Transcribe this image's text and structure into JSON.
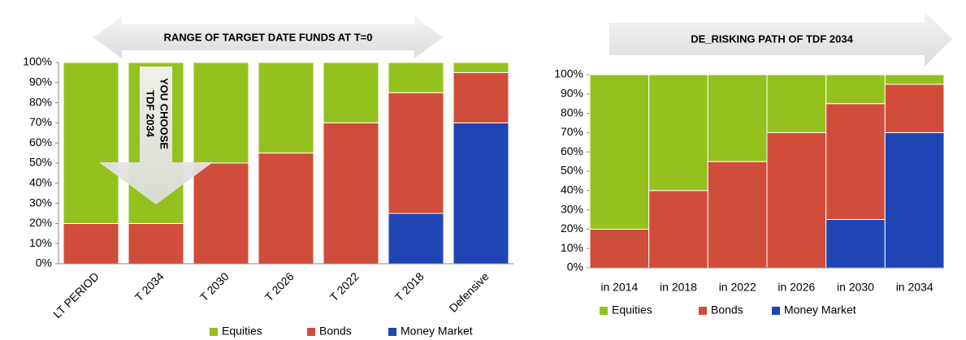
{
  "chart_data": [
    {
      "type": "stacked_bar",
      "title": "RANGE OF TARGET DATE FUNDS AT T=0",
      "annotations": [
        "YOU CHOOSE",
        "TDF 2034"
      ],
      "categories": [
        "LT PERIOD",
        "T 2034",
        "T 2030",
        "T 2026",
        "T 2022",
        "T 2018",
        "Defensive"
      ],
      "series": [
        {
          "name": "Equities",
          "color": "#95c11f",
          "values": [
            80,
            80,
            50,
            45,
            30,
            15,
            5
          ]
        },
        {
          "name": "Bonds",
          "color": "#cf4d3a",
          "values": [
            20,
            20,
            50,
            55,
            70,
            60,
            25
          ]
        },
        {
          "name": "Money Market",
          "color": "#1f45b5",
          "values": [
            0,
            0,
            0,
            0,
            0,
            25,
            70
          ]
        }
      ],
      "ylim": [
        0,
        100
      ],
      "yticks": [
        {
          "value": 0,
          "label": "0%"
        },
        {
          "value": 10,
          "label": "10%"
        },
        {
          "value": 20,
          "label": "20%"
        },
        {
          "value": 30,
          "label": "30%"
        },
        {
          "value": 40,
          "label": "40%"
        },
        {
          "value": 50,
          "label": "50%"
        },
        {
          "value": 60,
          "label": "60%"
        },
        {
          "value": 70,
          "label": "70%"
        },
        {
          "value": 80,
          "label": "80%"
        },
        {
          "value": 90,
          "label": "90%"
        },
        {
          "value": 100,
          "label": "100%"
        }
      ],
      "legend": "bottom"
    },
    {
      "type": "stacked_bar",
      "title": "DE_RISKING PATH OF TDF 2034",
      "categories": [
        "in 2014",
        "in 2018",
        "in 2022",
        "in 2026",
        "in 2030",
        "in 2034"
      ],
      "series": [
        {
          "name": "Equities",
          "color": "#95c11f",
          "values": [
            80,
            60,
            45,
            30,
            15,
            5
          ]
        },
        {
          "name": "Bonds",
          "color": "#cf4d3a",
          "values": [
            20,
            40,
            55,
            70,
            60,
            25
          ]
        },
        {
          "name": "Money Market",
          "color": "#1f45b5",
          "values": [
            0,
            0,
            0,
            0,
            25,
            70
          ]
        }
      ],
      "ylim": [
        0,
        100
      ],
      "yticks": [
        {
          "value": 0,
          "label": "0%"
        },
        {
          "value": 10,
          "label": "10%"
        },
        {
          "value": 20,
          "label": "20%"
        },
        {
          "value": 30,
          "label": "30%"
        },
        {
          "value": 40,
          "label": "40%"
        },
        {
          "value": 50,
          "label": "50%"
        },
        {
          "value": 60,
          "label": "60%"
        },
        {
          "value": 70,
          "label": "70%"
        },
        {
          "value": 80,
          "label": "80%"
        },
        {
          "value": 90,
          "label": "90%"
        },
        {
          "value": 100,
          "label": "100%"
        }
      ],
      "legend": "bottom"
    }
  ]
}
